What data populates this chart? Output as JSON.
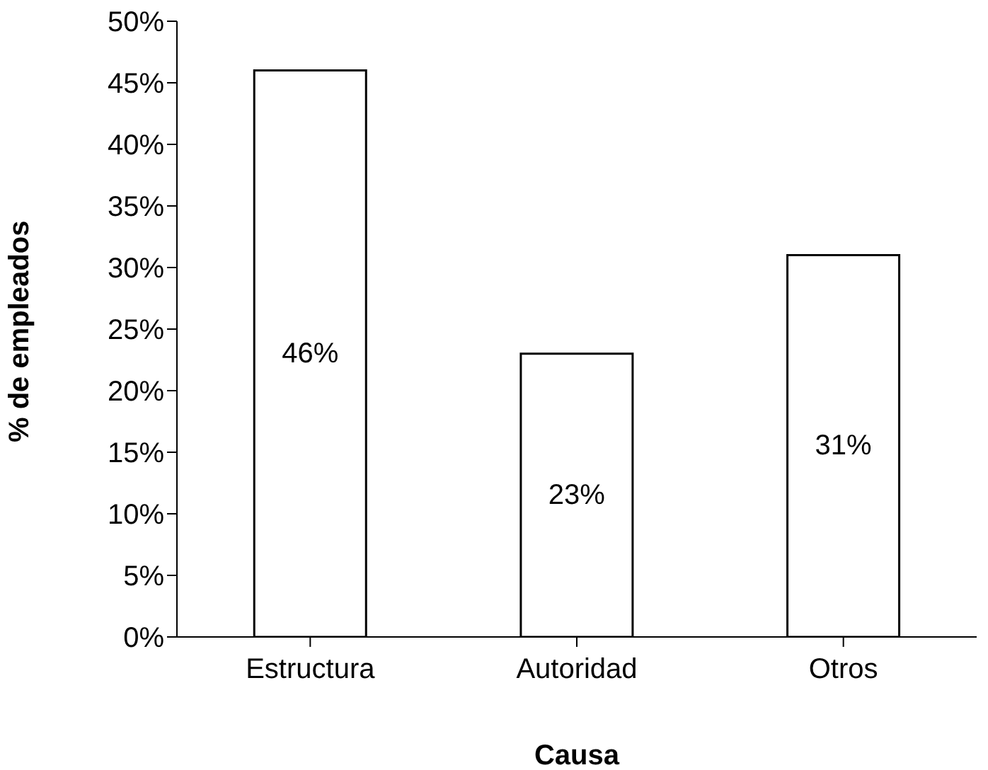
{
  "chart_data": {
    "type": "bar",
    "categories": [
      "Estructura",
      "Autoridad",
      "Otros"
    ],
    "values": [
      46,
      23,
      31
    ],
    "value_labels": [
      "46%",
      "23%",
      "31%"
    ],
    "color": "#ffffff",
    "xlabel": "Causa",
    "ylabel": "% de empleados",
    "ylim": [
      0,
      50
    ],
    "yticks": [
      {
        "value": 0,
        "label": "0%"
      },
      {
        "value": 5,
        "label": "5%"
      },
      {
        "value": 10,
        "label": "10%"
      },
      {
        "value": 15,
        "label": "15%"
      },
      {
        "value": 20,
        "label": "20%"
      },
      {
        "value": 25,
        "label": "25%"
      },
      {
        "value": 30,
        "label": "30%"
      },
      {
        "value": 35,
        "label": "35%"
      },
      {
        "value": 40,
        "label": "40%"
      },
      {
        "value": 45,
        "label": "45%"
      },
      {
        "value": 50,
        "label": "50%"
      }
    ],
    "grid": false,
    "legend": false
  }
}
